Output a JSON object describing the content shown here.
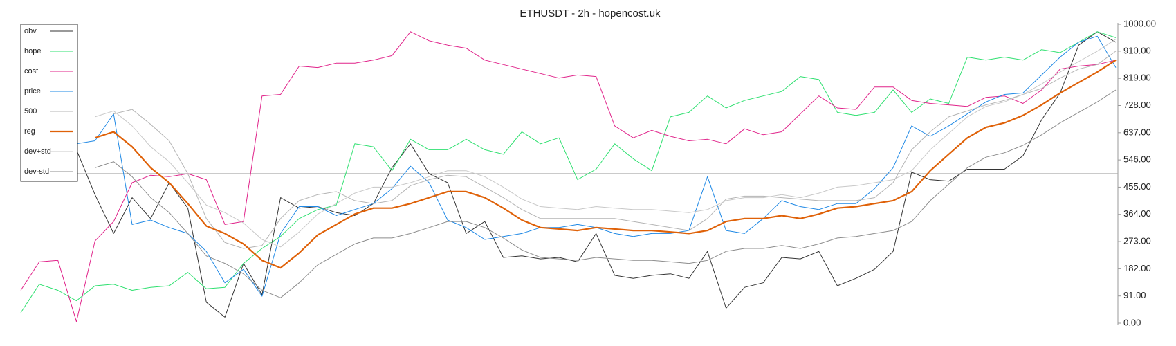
{
  "chart_data": {
    "type": "line",
    "title": "ETHUSDT - 2h - hopencost.uk",
    "ylim": [
      0,
      1000
    ],
    "yticks": [
      {
        "value": 0,
        "label": "0.00"
      },
      {
        "value": 91,
        "label": "91.00"
      },
      {
        "value": 182,
        "label": "182.00"
      },
      {
        "value": 273,
        "label": "273.00"
      },
      {
        "value": 364,
        "label": "364.00"
      },
      {
        "value": 455,
        "label": "455.00"
      },
      {
        "value": 546,
        "label": "546.00"
      },
      {
        "value": 637,
        "label": "637.00"
      },
      {
        "value": 728,
        "label": "728.00"
      },
      {
        "value": 819,
        "label": "819.00"
      },
      {
        "value": 910,
        "label": "910.00"
      },
      {
        "value": 1000,
        "label": "1000.00"
      }
    ],
    "hline": 500,
    "legend": "top-left",
    "series": [
      {
        "name": "obv",
        "color": "#333333",
        "width": 1,
        "values": [
          null,
          null,
          null,
          580,
          430,
          300,
          420,
          350,
          470,
          385,
          70,
          20,
          200,
          95,
          420,
          385,
          390,
          370,
          360,
          400,
          520,
          600,
          500,
          470,
          300,
          340,
          220,
          225,
          215,
          220,
          205,
          300,
          160,
          150,
          160,
          165,
          150,
          240,
          50,
          120,
          135,
          220,
          215,
          240,
          125,
          150,
          180,
          240,
          505,
          480,
          475,
          515,
          515,
          515,
          560,
          680,
          770,
          930,
          975,
          940
        ]
      },
      {
        "name": "hope",
        "color": "#2fe070",
        "width": 1,
        "values": [
          35,
          130,
          110,
          75,
          125,
          130,
          110,
          120,
          125,
          170,
          115,
          120,
          200,
          250,
          290,
          350,
          380,
          395,
          600,
          590,
          510,
          615,
          580,
          580,
          615,
          580,
          565,
          640,
          600,
          620,
          480,
          515,
          600,
          550,
          510,
          690,
          705,
          760,
          720,
          745,
          760,
          775,
          825,
          815,
          705,
          695,
          705,
          780,
          705,
          750,
          735,
          890,
          880,
          890,
          880,
          915,
          905,
          940,
          975,
          955
        ]
      },
      {
        "name": "cost",
        "color": "#e0238a",
        "width": 1,
        "values": [
          110,
          205,
          210,
          5,
          275,
          340,
          470,
          495,
          490,
          500,
          480,
          330,
          340,
          760,
          765,
          860,
          855,
          870,
          870,
          880,
          895,
          975,
          945,
          930,
          920,
          880,
          865,
          850,
          835,
          820,
          830,
          825,
          660,
          620,
          645,
          625,
          610,
          615,
          600,
          650,
          630,
          640,
          700,
          760,
          720,
          715,
          790,
          790,
          745,
          735,
          730,
          725,
          755,
          760,
          735,
          780,
          850,
          860,
          865,
          880
        ]
      },
      {
        "name": "price",
        "color": "#1e88e5",
        "width": 1,
        "values": [
          null,
          null,
          null,
          600,
          610,
          700,
          330,
          345,
          320,
          300,
          240,
          135,
          180,
          90,
          300,
          390,
          390,
          360,
          380,
          400,
          450,
          525,
          470,
          345,
          320,
          280,
          290,
          300,
          320,
          320,
          330,
          320,
          300,
          290,
          300,
          300,
          310,
          490,
          310,
          300,
          350,
          410,
          390,
          380,
          400,
          400,
          450,
          520,
          660,
          625,
          660,
          700,
          740,
          765,
          770,
          830,
          890,
          940,
          960,
          855
        ]
      },
      {
        "name": "500",
        "color": "#b4b4b4",
        "width": 1,
        "values": [
          null,
          null,
          null,
          null,
          null,
          700,
          715,
          665,
          610,
          500,
          350,
          270,
          250,
          260,
          350,
          410,
          430,
          440,
          410,
          400,
          410,
          460,
          480,
          495,
          490,
          455,
          420,
          380,
          350,
          350,
          350,
          350,
          350,
          340,
          330,
          320,
          310,
          350,
          415,
          425,
          425,
          420,
          415,
          410,
          410,
          410,
          420,
          470,
          580,
          640,
          690,
          710,
          730,
          745,
          765,
          785,
          820,
          850,
          865,
          910
        ]
      },
      {
        "name": "reg",
        "color": "#df6108",
        "width": 2.2,
        "values": [
          null,
          null,
          null,
          null,
          620,
          640,
          590,
          520,
          470,
          400,
          325,
          300,
          265,
          210,
          185,
          235,
          295,
          330,
          365,
          385,
          385,
          400,
          420,
          440,
          440,
          420,
          385,
          345,
          320,
          315,
          310,
          320,
          315,
          310,
          310,
          305,
          300,
          310,
          340,
          350,
          350,
          360,
          350,
          365,
          385,
          390,
          400,
          410,
          440,
          510,
          565,
          620,
          655,
          670,
          695,
          730,
          770,
          805,
          840,
          880
        ]
      },
      {
        "name": "dev+std",
        "color": "#c8c8c8",
        "width": 1,
        "values": [
          null,
          null,
          null,
          null,
          690,
          710,
          660,
          590,
          540,
          470,
          395,
          370,
          335,
          280,
          255,
          305,
          365,
          400,
          435,
          455,
          455,
          470,
          490,
          510,
          510,
          490,
          455,
          415,
          390,
          385,
          380,
          390,
          385,
          380,
          380,
          375,
          370,
          380,
          410,
          420,
          420,
          430,
          420,
          435,
          455,
          460,
          470,
          480,
          510,
          580,
          635,
          690,
          725,
          740,
          765,
          800,
          840,
          875,
          910,
          950
        ]
      },
      {
        "name": "dev-std",
        "color": "#8c8c8c",
        "width": 1,
        "values": [
          null,
          null,
          null,
          null,
          520,
          540,
          490,
          420,
          370,
          300,
          225,
          200,
          165,
          110,
          85,
          135,
          195,
          230,
          265,
          285,
          285,
          300,
          320,
          340,
          340,
          320,
          285,
          245,
          220,
          215,
          210,
          220,
          215,
          210,
          210,
          205,
          200,
          210,
          240,
          250,
          250,
          260,
          250,
          265,
          285,
          290,
          300,
          310,
          340,
          410,
          465,
          520,
          555,
          570,
          595,
          630,
          670,
          705,
          740,
          780
        ]
      }
    ]
  }
}
